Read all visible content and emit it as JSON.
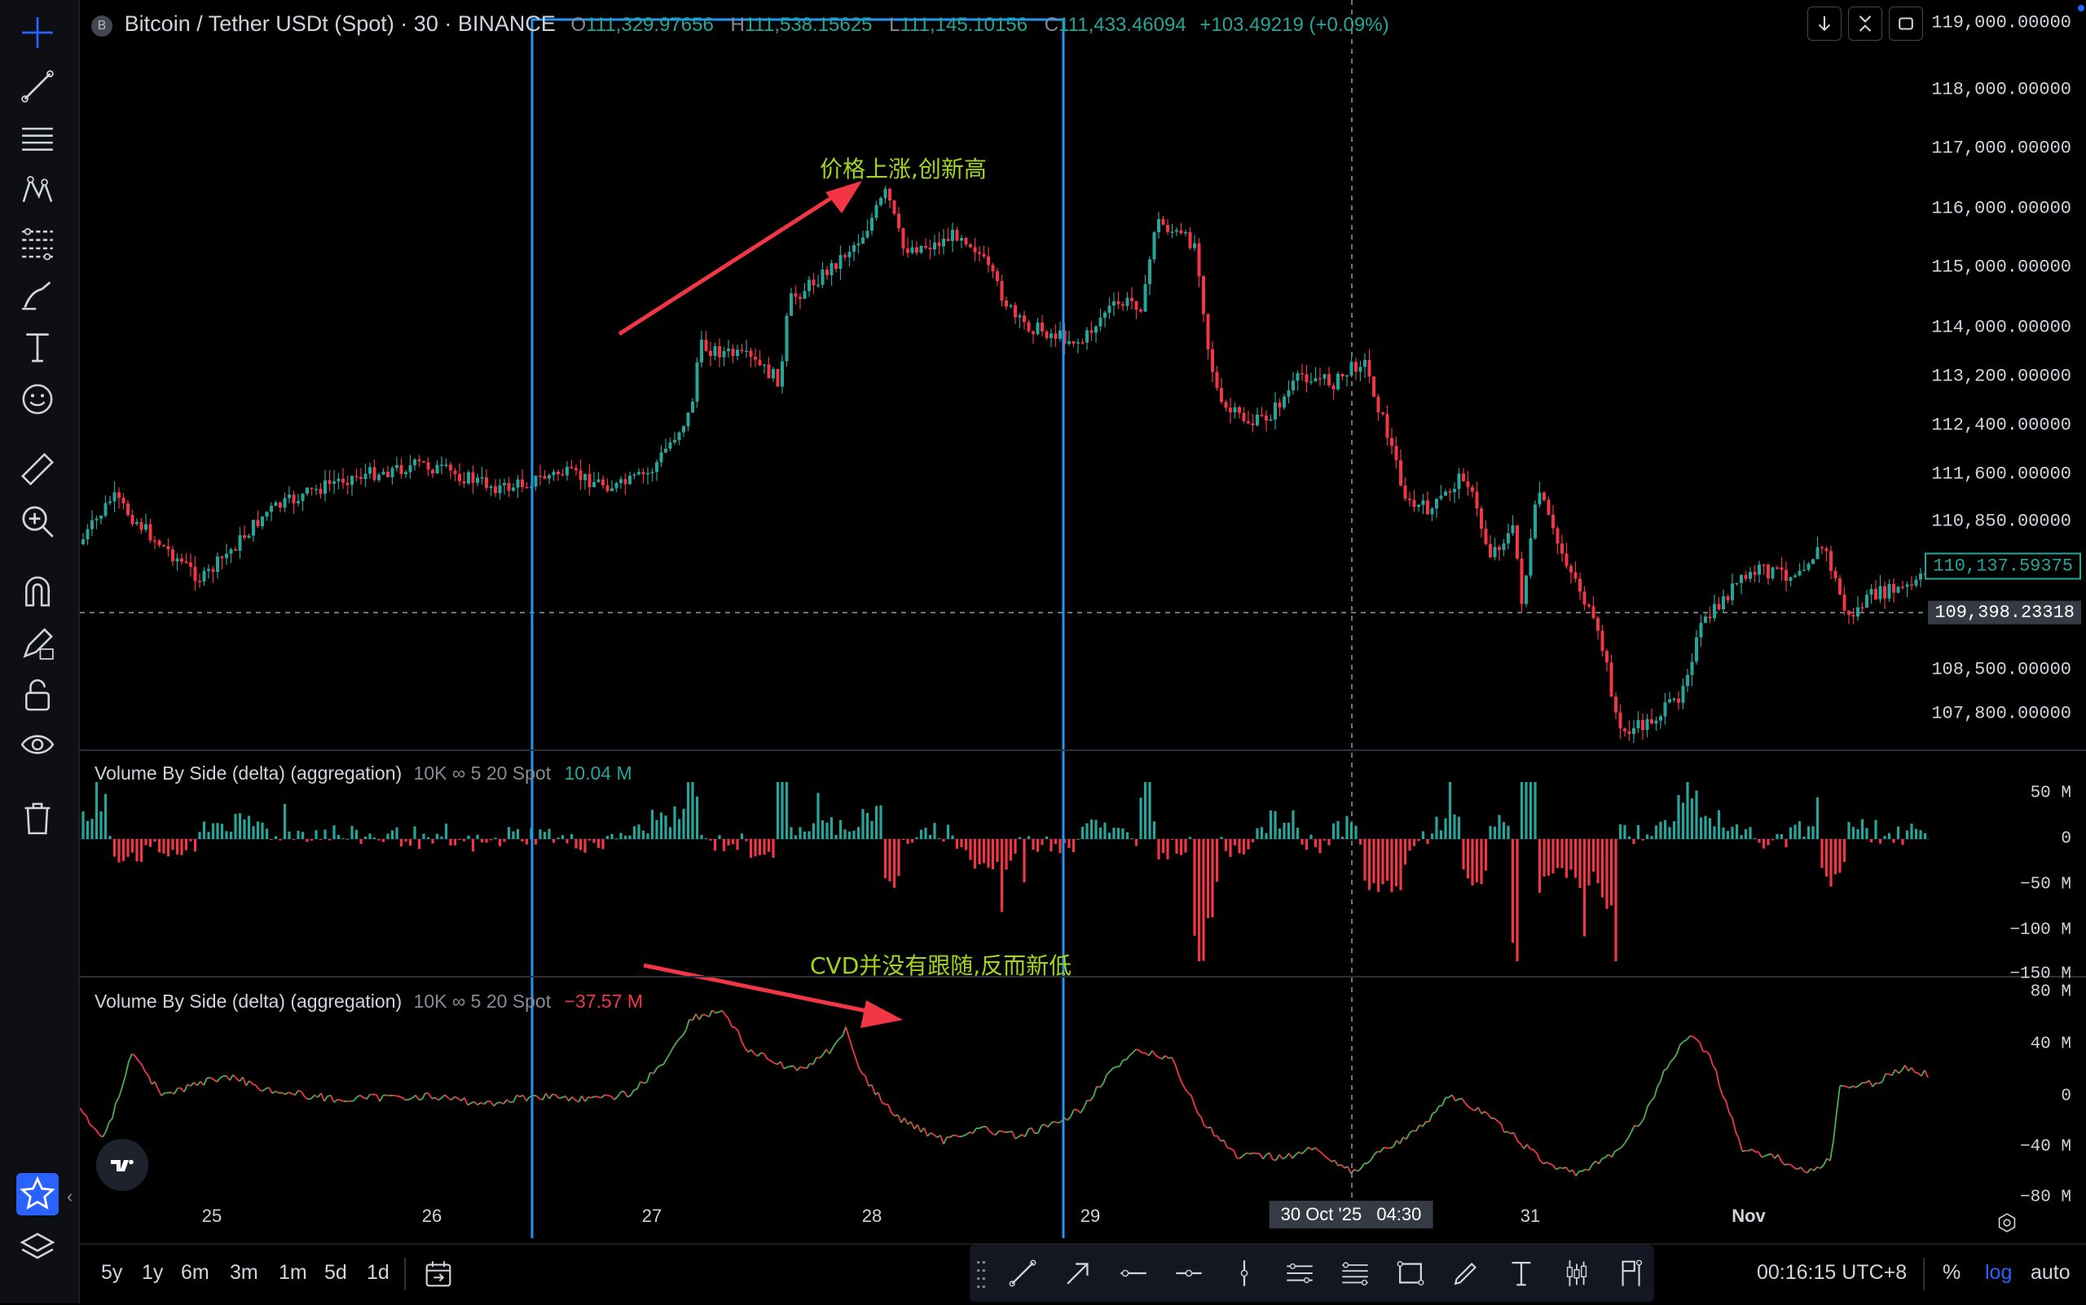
{
  "header": {
    "symbol_badge": "B",
    "title": "Bitcoin / Tether USDt (Spot) · 30 · BINANCE",
    "o_label": "O",
    "o_value": "111,329.97656",
    "h_label": "H",
    "h_value": "111,538.15625",
    "l_label": "L",
    "l_value": "111,145.10156",
    "c_label": "C",
    "c_value": "111,433.46094",
    "change": "+103.49219 (+0.09%)"
  },
  "price_axis": {
    "labels": [
      "119,000.00000",
      "118,000.00000",
      "117,000.00000",
      "116,000.00000",
      "115,000.00000",
      "114,000.00000",
      "113,200.00000",
      "112,400.00000",
      "111,600.00000",
      "110,850.00000",
      "108,500.00000",
      "107,800.00000"
    ],
    "current_price": "110,137.59375",
    "crosshair_price": "109,398.23318"
  },
  "volume_pane": {
    "indicator": "Volume By Side (delta) (aggregation)",
    "params": "10K ∞ 5 20 Spot",
    "value": "10.04 M",
    "axis": [
      "50 M",
      "0",
      "−50 M",
      "−100 M",
      "−150 M"
    ]
  },
  "cvd_pane": {
    "indicator": "Volume By Side (delta) (aggregation)",
    "params": "10K ∞ 5 20 Spot",
    "value": "−37.57 M",
    "axis": [
      "80 M",
      "40 M",
      "0",
      "−40 M",
      "−80 M"
    ]
  },
  "annotations": {
    "price_note": "价格上涨,创新高",
    "cvd_note": "CVD并没有跟随,反而新低"
  },
  "time_axis": {
    "labels": [
      "25",
      "26",
      "27",
      "28",
      "29",
      "31",
      "Nov"
    ],
    "crosshair_date": "30 Oct '25",
    "crosshair_time": "04:30"
  },
  "bottom_bar": {
    "ranges": [
      "5y",
      "1y",
      "6m",
      "3m",
      "1m",
      "5d",
      "1d"
    ],
    "clock": "00:16:15 UTC+8",
    "percent": "%",
    "log": "log",
    "auto": "auto"
  },
  "toolbar_tools": [
    "crosshair-icon",
    "trend-line-icon",
    "horizontal-lines-icon",
    "pattern-icon",
    "fib-icon",
    "brush-icon",
    "text-icon",
    "emoji-icon",
    "ruler-icon",
    "zoom-in-icon",
    "magnet-icon",
    "lock-drawing-icon",
    "lock-icon",
    "eye-icon",
    "trash-icon",
    "star-icon",
    "layers-icon"
  ],
  "colors": {
    "up": "#26a69a",
    "down": "#f23645",
    "cvd_up": "#4caf50",
    "cvd_down": "#f23645",
    "annotation": "#a3d51c",
    "box": "#2196f3",
    "arrow": "#f23645",
    "accent": "#2962ff"
  }
}
